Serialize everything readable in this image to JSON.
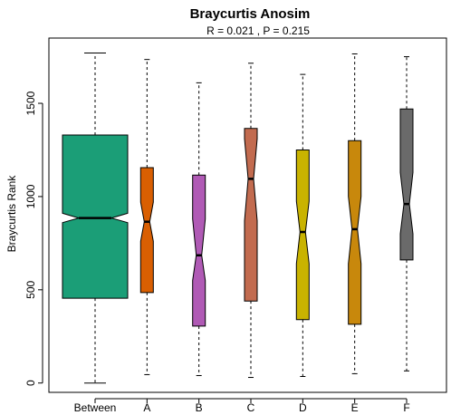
{
  "chart_data": {
    "type": "boxplot",
    "title": "Braycurtis Anosim",
    "subtitle": "R =  0.021 ,  P =  0.215",
    "xlabel": "",
    "ylabel": "Braycurtis Rank",
    "ylim": [
      -50,
      1850
    ],
    "yticks": [
      0,
      500,
      1000,
      1500
    ],
    "ytick_labels": [
      "0",
      "500",
      "1000",
      "1500"
    ],
    "categories": [
      "Between",
      "A",
      "B",
      "C",
      "D",
      "E",
      "F"
    ],
    "colors": [
      "#1B9E77",
      "#D95F02",
      "#B05AB5",
      "#C26B4F",
      "#C9B300",
      "#C8880C",
      "#6A6A6A"
    ],
    "notched": true,
    "boxes": [
      {
        "name": "Between",
        "min": 0,
        "q1": 455,
        "median": 885,
        "q3": 1330,
        "max": 1770,
        "notch_low": 860,
        "notch_high": 910
      },
      {
        "name": "A",
        "min": 45,
        "q1": 485,
        "median": 865,
        "q3": 1155,
        "max": 1735,
        "notch_low": 760,
        "notch_high": 970
      },
      {
        "name": "B",
        "min": 40,
        "q1": 305,
        "median": 685,
        "q3": 1115,
        "max": 1610,
        "notch_low": 550,
        "notch_high": 880
      },
      {
        "name": "C",
        "min": 30,
        "q1": 440,
        "median": 1095,
        "q3": 1365,
        "max": 1715,
        "notch_low": 870,
        "notch_high": 1310
      },
      {
        "name": "D",
        "min": 35,
        "q1": 340,
        "median": 810,
        "q3": 1250,
        "max": 1655,
        "notch_low": 640,
        "notch_high": 975
      },
      {
        "name": "E",
        "min": 50,
        "q1": 315,
        "median": 825,
        "q3": 1300,
        "max": 1765,
        "notch_low": 640,
        "notch_high": 1000
      },
      {
        "name": "F",
        "min": 65,
        "q1": 660,
        "median": 960,
        "q3": 1470,
        "max": 1750,
        "notch_low": 800,
        "notch_high": 1130
      }
    ]
  }
}
